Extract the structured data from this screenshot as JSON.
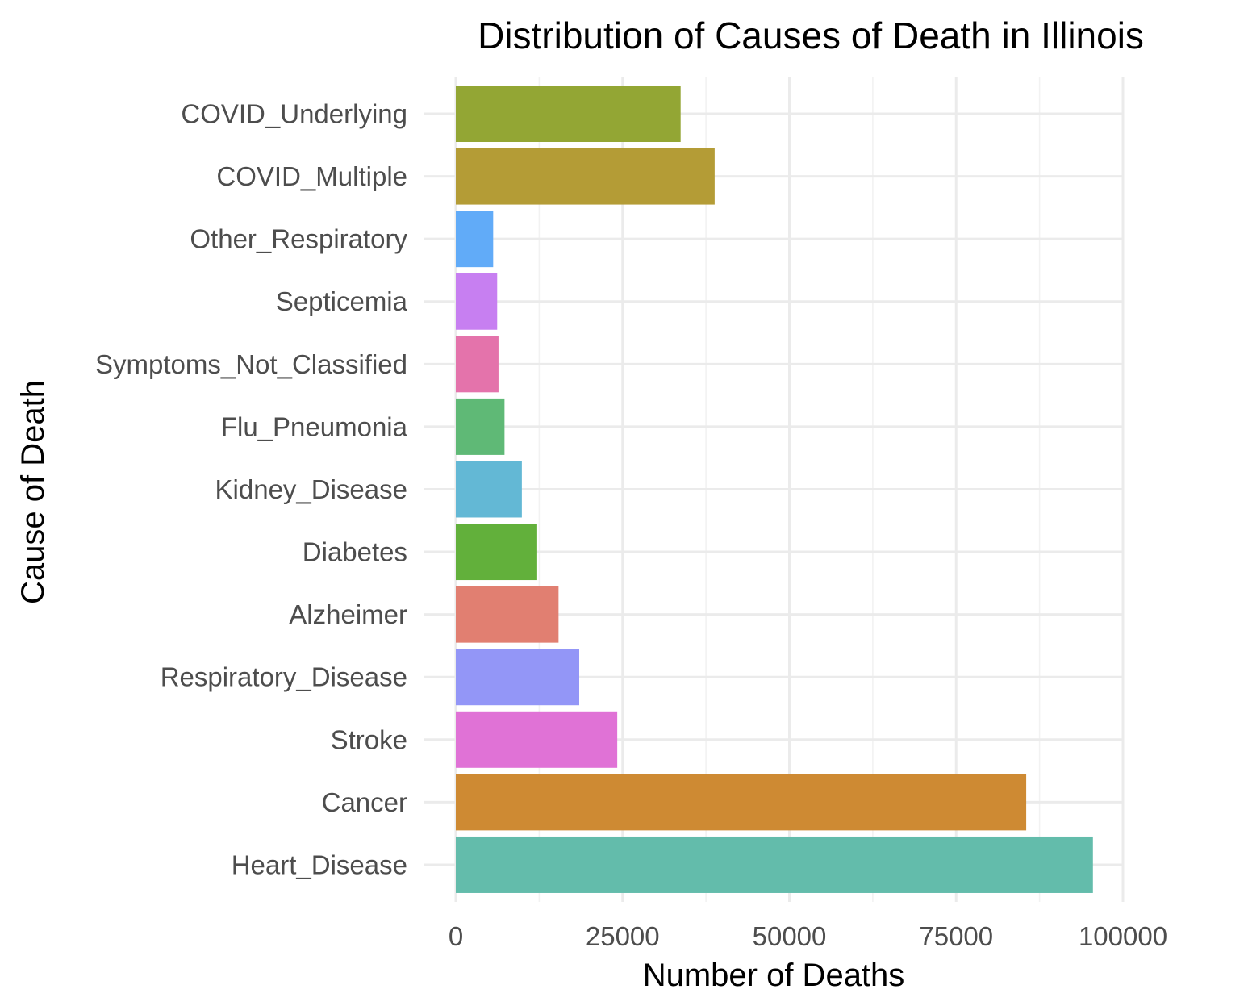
{
  "chart_data": {
    "type": "bar",
    "orientation": "horizontal",
    "title": "Distribution of Causes of Death in Illinois",
    "xlabel": "Number of Deaths",
    "ylabel": "Cause of Death",
    "xlim": [
      0,
      100000
    ],
    "x_ticks": [
      0,
      25000,
      50000,
      75000,
      100000
    ],
    "x_tick_labels": [
      "0",
      "25000",
      "50000",
      "75000",
      "100000"
    ],
    "grid": true,
    "legend": "none",
    "categories": [
      "COVID_Underlying",
      "COVID_Multiple",
      "Other_Respiratory",
      "Septicemia",
      "Symptoms_Not_Classified",
      "Flu_Pneumonia",
      "Kidney_Disease",
      "Diabetes",
      "Alzheimer",
      "Respiratory_Disease",
      "Stroke",
      "Cancer",
      "Heart_Disease"
    ],
    "values": [
      33700,
      38800,
      5600,
      6200,
      6400,
      7300,
      9900,
      12200,
      15400,
      18500,
      24200,
      85500,
      95500
    ],
    "colors": [
      "#93a634",
      "#b49c36",
      "#61abf8",
      "#c77ff1",
      "#e473ab",
      "#5fb976",
      "#63b8d5",
      "#62b03b",
      "#e17f71",
      "#9396f7",
      "#e072d6",
      "#ce8a33",
      "#63bcab"
    ]
  }
}
